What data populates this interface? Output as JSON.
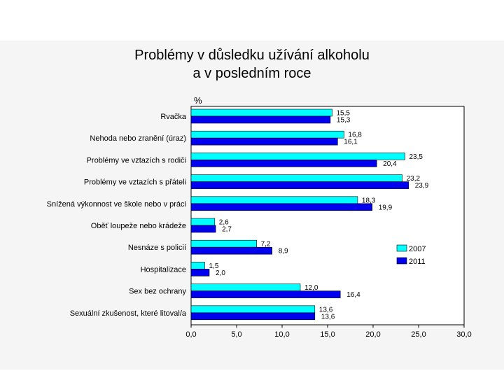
{
  "chart_data": {
    "type": "bar",
    "orientation": "horizontal",
    "title_line1": "Problémy v důsledku užívání alkoholu",
    "title_line2": "a v posledním roce",
    "ylabel": "%",
    "xlim": [
      0,
      30
    ],
    "xticks": [
      "0,0",
      "5,0",
      "10,0",
      "15,0",
      "20,0",
      "25,0",
      "30,0"
    ],
    "xtick_values": [
      0,
      5,
      10,
      15,
      20,
      25,
      30
    ],
    "categories": [
      "Rvačka",
      "Nehoda nebo zranění (úraz)",
      "Problémy ve vztazích s rodiči",
      "Problémy ve vztazích s přáteli",
      "Snížená výkonnost ve škole nebo v práci",
      "Oběť loupeže nebo krádeže",
      "Nesnáze s policií",
      "Hospitalizace",
      "Sex bez ochrany",
      "Sexuální zkušenost, které litoval/a"
    ],
    "series": [
      {
        "name": "2007",
        "color": "#00ffff",
        "values": [
          15.5,
          16.8,
          23.5,
          23.2,
          18.3,
          2.6,
          7.2,
          1.5,
          12.0,
          13.6
        ],
        "labels": [
          "15,5",
          "16,8",
          "23,5",
          "23,2",
          "18,3",
          "2,6",
          "7,2",
          "1,5",
          "12,0",
          "13,6"
        ]
      },
      {
        "name": "2011",
        "color": "#0000ee",
        "values": [
          15.3,
          16.1,
          20.4,
          23.9,
          19.9,
          2.7,
          8.9,
          2.0,
          16.4,
          13.6
        ],
        "labels": [
          "15,3",
          "16,1",
          "20,4",
          "23,9",
          "19,9",
          "2,7",
          "8,9",
          "2,0",
          "16,4",
          "13,6"
        ]
      }
    ],
    "legend_position": "right"
  }
}
